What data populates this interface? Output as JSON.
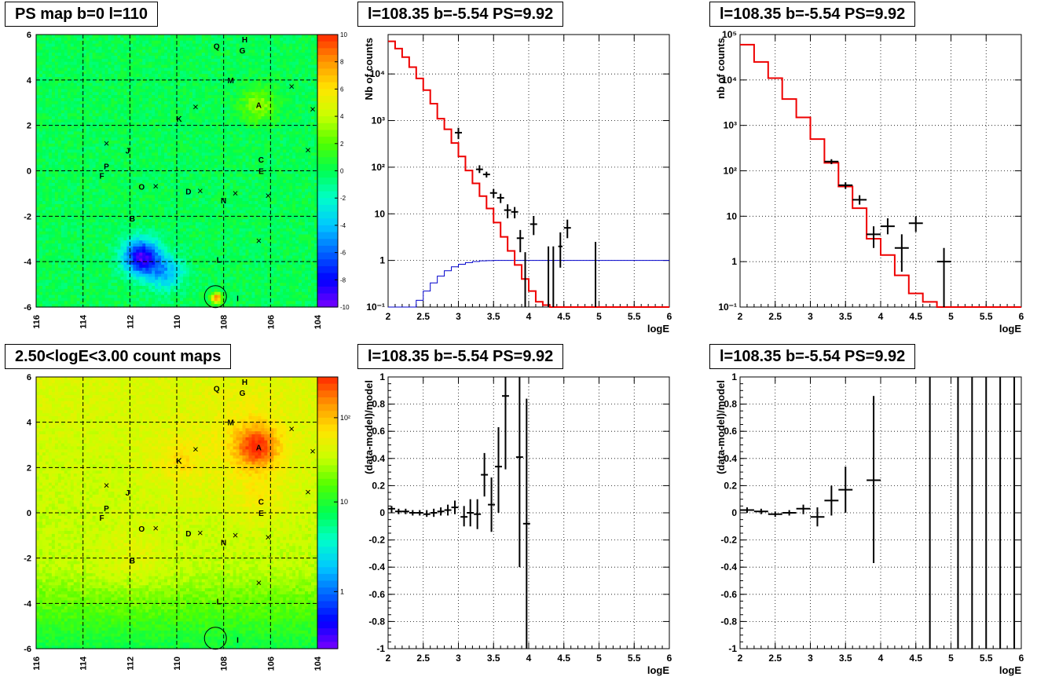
{
  "colors": {
    "red": "#ee0000",
    "blue": "#0000cc",
    "frame": "#000000"
  },
  "titles": {
    "map_ps": "PS map b=0 l=110",
    "map_counts": "2.50<logE<3.00 count maps",
    "spec_1": "l=108.35 b=-5.54 PS=9.92",
    "spec_2": "l=108.35 b=-5.54 PS=9.92",
    "res_1": "l=108.35 b=-5.54 PS=9.92",
    "res_2": "l=108.35 b=-5.54 PS=9.92"
  },
  "chart_data": [
    {
      "type": "heatmap",
      "id": "ps_map",
      "title": "PS map b=0 l=110",
      "x_ticks": [
        "116",
        "114",
        "112",
        "110",
        "108",
        "106",
        "104"
      ],
      "y_ticks": [
        "6",
        "4",
        "2",
        "0",
        "-2",
        "-4",
        "-6"
      ],
      "xlim": [
        116,
        104
      ],
      "ylim": [
        -6,
        6
      ],
      "colorbar": {
        "ticks": [
          "10",
          "8",
          "6",
          "4",
          "2",
          "0",
          "-2",
          "-4",
          "-6",
          "-8",
          "-10"
        ],
        "range": [
          -10,
          10
        ]
      },
      "grid": true,
      "sources": [
        {
          "label": "Q",
          "l": 108.3,
          "b": 5.5
        },
        {
          "label": "H",
          "l": 107.1,
          "b": 5.8
        },
        {
          "label": "G",
          "l": 107.2,
          "b": 5.3
        },
        {
          "label": "M",
          "l": 107.7,
          "b": 4.0
        },
        {
          "label": "A",
          "l": 106.5,
          "b": 2.9
        },
        {
          "label": "K",
          "l": 109.9,
          "b": 2.3
        },
        {
          "label": "J",
          "l": 112.1,
          "b": 0.9
        },
        {
          "label": "C",
          "l": 106.4,
          "b": 0.5
        },
        {
          "label": "P",
          "l": 113.0,
          "b": 0.2
        },
        {
          "label": "E",
          "l": 106.4,
          "b": 0.0
        },
        {
          "label": "F",
          "l": 113.2,
          "b": -0.2
        },
        {
          "label": "O",
          "l": 111.5,
          "b": -0.7
        },
        {
          "label": "D",
          "l": 109.5,
          "b": -0.9
        },
        {
          "label": "N",
          "l": 108.0,
          "b": -1.3
        },
        {
          "label": "B",
          "l": 111.9,
          "b": -2.1
        },
        {
          "label": "L",
          "l": 108.2,
          "b": -3.9
        },
        {
          "label": "I",
          "l": 107.4,
          "b": -5.6
        }
      ],
      "crosses": [
        [
          105.1,
          3.7
        ],
        [
          104.2,
          2.7
        ],
        [
          109.2,
          2.8
        ],
        [
          113.0,
          1.2
        ],
        [
          104.4,
          0.9
        ],
        [
          110.9,
          -0.7
        ],
        [
          109.0,
          -0.9
        ],
        [
          107.5,
          -1.0
        ],
        [
          106.1,
          -1.1
        ],
        [
          106.5,
          -3.1
        ]
      ],
      "circle": {
        "l": 108.35,
        "b": -5.54
      },
      "hotspots": [
        {
          "l": 111.5,
          "b": -3.8,
          "v": -9
        },
        {
          "l": 110.5,
          "b": -4.5,
          "v": -4
        },
        {
          "l": 106.5,
          "b": 2.9,
          "v": 3
        },
        {
          "l": 108.3,
          "b": -5.6,
          "v": 9
        }
      ]
    },
    {
      "type": "heatmap",
      "id": "count_map",
      "title": "2.50<logE<3.00 count maps",
      "x_ticks": [
        "116",
        "114",
        "112",
        "110",
        "108",
        "106",
        "104"
      ],
      "y_ticks": [
        "6",
        "4",
        "2",
        "0",
        "-2",
        "-4",
        "-6"
      ],
      "xlim": [
        116,
        104
      ],
      "ylim": [
        -6,
        6
      ],
      "colorbar": {
        "ticks": [
          "10²",
          "10",
          "1"
        ],
        "scale": "log"
      },
      "grid": true,
      "sources": [
        {
          "label": "Q",
          "l": 108.3,
          "b": 5.5
        },
        {
          "label": "H",
          "l": 107.1,
          "b": 5.8
        },
        {
          "label": "G",
          "l": 107.2,
          "b": 5.3
        },
        {
          "label": "M",
          "l": 107.7,
          "b": 4.0
        },
        {
          "label": "A",
          "l": 106.5,
          "b": 2.9
        },
        {
          "label": "K",
          "l": 109.9,
          "b": 2.3
        },
        {
          "label": "J",
          "l": 112.1,
          "b": 0.9
        },
        {
          "label": "C",
          "l": 106.4,
          "b": 0.5
        },
        {
          "label": "P",
          "l": 113.0,
          "b": 0.2
        },
        {
          "label": "E",
          "l": 106.4,
          "b": 0.0
        },
        {
          "label": "F",
          "l": 113.2,
          "b": -0.2
        },
        {
          "label": "O",
          "l": 111.5,
          "b": -0.7
        },
        {
          "label": "D",
          "l": 109.5,
          "b": -0.9
        },
        {
          "label": "N",
          "l": 108.0,
          "b": -1.3
        },
        {
          "label": "B",
          "l": 111.9,
          "b": -2.1
        },
        {
          "label": "L",
          "l": 108.2,
          "b": -3.9
        },
        {
          "label": "I",
          "l": 107.4,
          "b": -5.6
        }
      ],
      "crosses": [
        [
          105.1,
          3.7
        ],
        [
          104.2,
          2.7
        ],
        [
          109.2,
          2.8
        ],
        [
          113.0,
          1.2
        ],
        [
          104.4,
          0.9
        ],
        [
          110.9,
          -0.7
        ],
        [
          109.0,
          -0.9
        ],
        [
          107.5,
          -1.0
        ],
        [
          106.1,
          -1.1
        ],
        [
          106.5,
          -3.1
        ]
      ],
      "circle": {
        "l": 108.35,
        "b": -5.54
      },
      "hotspots": [
        {
          "l": 106.6,
          "b": 2.9,
          "v": 1.0
        },
        {
          "l": 109.8,
          "b": 2.3,
          "v": 0.55
        },
        {
          "l": 106.5,
          "b": 0.7,
          "v": 0.5
        },
        {
          "l": 111.8,
          "b": -2.0,
          "v": 0.45
        },
        {
          "l": 107.0,
          "b": 4.2,
          "v": 0.4
        }
      ]
    },
    {
      "type": "line",
      "id": "spectrum_1",
      "title": "l=108.35 b=-5.54 PS=9.92",
      "xlabel": "logE",
      "ylabel": "Nb of counts",
      "xlim": [
        2,
        6
      ],
      "ylim": [
        0.1,
        70000
      ],
      "yscale": "log",
      "x_ticks": [
        "2",
        "2.5",
        "3",
        "3.5",
        "4",
        "4.5",
        "5",
        "5.5",
        "6"
      ],
      "y_ticks": [
        "10⁻¹",
        "1",
        "10",
        "10²",
        "10³",
        "10⁴"
      ],
      "model_red": {
        "edges": [
          2,
          2.1,
          2.2,
          2.3,
          2.4,
          2.5,
          2.6,
          2.7,
          2.8,
          2.9,
          3.0,
          3.1,
          3.2,
          3.3,
          3.4,
          3.5,
          3.6,
          3.7,
          3.8,
          3.9,
          4.0,
          4.1,
          4.2,
          4.3,
          4.4,
          6.0
        ],
        "values": [
          50000,
          35000,
          23000,
          14000,
          8000,
          4500,
          2300,
          1100,
          650,
          330,
          170,
          85,
          45,
          24,
          13,
          6.5,
          3.2,
          1.6,
          0.8,
          0.4,
          0.22,
          0.13,
          0.11,
          0.1,
          0.1
        ]
      },
      "acceptance_blue": {
        "edges": [
          2,
          2.4,
          2.5,
          2.6,
          2.7,
          2.8,
          2.9,
          3.0,
          3.1,
          3.2,
          3.3,
          3.4,
          3.5,
          3.7,
          6.0
        ],
        "values": [
          0.1,
          0.14,
          0.22,
          0.33,
          0.46,
          0.6,
          0.73,
          0.83,
          0.9,
          0.95,
          0.98,
          0.99,
          1.0,
          1.0
        ]
      },
      "data_points": [
        {
          "x": 3.0,
          "y": 550,
          "xerr": 0.05,
          "ylo": 400,
          "yhi": 700
        },
        {
          "x": 3.3,
          "y": 90,
          "xerr": 0.05,
          "ylo": 75,
          "yhi": 110
        },
        {
          "x": 3.4,
          "y": 70,
          "xerr": 0.05,
          "ylo": 60,
          "yhi": 80
        },
        {
          "x": 3.5,
          "y": 28,
          "xerr": 0.05,
          "ylo": 22,
          "yhi": 34
        },
        {
          "x": 3.6,
          "y": 22,
          "xerr": 0.05,
          "ylo": 17,
          "yhi": 27
        },
        {
          "x": 3.7,
          "y": 12,
          "xerr": 0.05,
          "ylo": 8,
          "yhi": 16
        },
        {
          "x": 3.8,
          "y": 11,
          "xerr": 0.05,
          "ylo": 8,
          "yhi": 14
        },
        {
          "x": 3.88,
          "y": 3,
          "xerr": 0.05,
          "ylo": 1.5,
          "yhi": 4.5
        },
        {
          "x": 3.95,
          "y": 0.1,
          "xerr": 0.0,
          "ylo": 0.1,
          "yhi": 1.5
        },
        {
          "x": 4.07,
          "y": 6,
          "xerr": 0.05,
          "ylo": 3.5,
          "yhi": 9
        },
        {
          "x": 4.28,
          "y": 0.1,
          "xerr": 0.0,
          "ylo": 0.1,
          "yhi": 2
        },
        {
          "x": 4.35,
          "y": 0.1,
          "xerr": 0.0,
          "ylo": 0.1,
          "yhi": 2
        },
        {
          "x": 4.45,
          "y": 2,
          "xerr": 0.03,
          "ylo": 0.7,
          "yhi": 4
        },
        {
          "x": 4.55,
          "y": 5,
          "xerr": 0.05,
          "ylo": 3,
          "yhi": 7.5
        },
        {
          "x": 4.95,
          "y": 1,
          "xerr": 0.0,
          "ylo": 0.1,
          "yhi": 2.5
        }
      ]
    },
    {
      "type": "line",
      "id": "spectrum_2",
      "title": "l=108.35 b=-5.54 PS=9.92",
      "xlabel": "logE",
      "ylabel": "nb of counts",
      "xlim": [
        2,
        6
      ],
      "ylim": [
        0.1,
        100000
      ],
      "yscale": "log",
      "x_ticks": [
        "2",
        "2.5",
        "3",
        "3.5",
        "4",
        "4.5",
        "5",
        "5.5",
        "6"
      ],
      "y_ticks": [
        "10⁻¹",
        "1",
        "10",
        "10²",
        "10³",
        "10⁴",
        "10⁵"
      ],
      "model_red": {
        "edges": [
          2,
          2.2,
          2.4,
          2.6,
          2.8,
          3.0,
          3.2,
          3.4,
          3.6,
          3.8,
          4.0,
          4.2,
          4.4,
          4.6,
          4.8,
          6.0
        ],
        "values": [
          60000,
          25000,
          11000,
          3800,
          1500,
          500,
          150,
          45,
          15,
          3.2,
          1.4,
          0.5,
          0.2,
          0.13,
          0.1
        ]
      },
      "data_points": [
        {
          "x": 3.3,
          "y": 160,
          "xerr": 0.1,
          "ylo": 140,
          "yhi": 180
        },
        {
          "x": 3.5,
          "y": 48,
          "xerr": 0.1,
          "ylo": 40,
          "yhi": 56
        },
        {
          "x": 3.7,
          "y": 23,
          "xerr": 0.1,
          "ylo": 18,
          "yhi": 29
        },
        {
          "x": 3.9,
          "y": 4,
          "xerr": 0.1,
          "ylo": 2,
          "yhi": 6
        },
        {
          "x": 4.1,
          "y": 6,
          "xerr": 0.1,
          "ylo": 4,
          "yhi": 9
        },
        {
          "x": 4.3,
          "y": 2,
          "xerr": 0.1,
          "ylo": 0.6,
          "yhi": 4
        },
        {
          "x": 4.5,
          "y": 7,
          "xerr": 0.1,
          "ylo": 4.5,
          "yhi": 10
        },
        {
          "x": 4.9,
          "y": 1,
          "xerr": 0.1,
          "ylo": 0.1,
          "yhi": 2
        }
      ]
    },
    {
      "type": "scatter",
      "id": "residuals_1",
      "title": "l=108.35 b=-5.54 PS=9.92",
      "xlabel": "logE",
      "ylabel": "(data-model)/model",
      "xlim": [
        2,
        6
      ],
      "ylim": [
        -1,
        1
      ],
      "x_ticks": [
        "2",
        "2.5",
        "3",
        "3.5",
        "4",
        "4.5",
        "5",
        "5.5",
        "6"
      ],
      "y_ticks": [
        "1",
        "0.8",
        "0.6",
        "0.4",
        "0.2",
        "0",
        "-0.2",
        "-0.4",
        "-0.6",
        "-0.8",
        "-1"
      ],
      "data_points": [
        {
          "x": 2.05,
          "y": 0.03,
          "xerr": 0.05,
          "ylo": 0.0,
          "yhi": 0.05
        },
        {
          "x": 2.15,
          "y": 0.01,
          "xerr": 0.05,
          "ylo": -0.01,
          "yhi": 0.03
        },
        {
          "x": 2.25,
          "y": 0.01,
          "xerr": 0.05,
          "ylo": -0.01,
          "yhi": 0.03
        },
        {
          "x": 2.35,
          "y": 0.0,
          "xerr": 0.05,
          "ylo": -0.02,
          "yhi": 0.02
        },
        {
          "x": 2.45,
          "y": 0.0,
          "xerr": 0.05,
          "ylo": -0.02,
          "yhi": 0.02
        },
        {
          "x": 2.55,
          "y": -0.01,
          "xerr": 0.05,
          "ylo": -0.03,
          "yhi": 0.02
        },
        {
          "x": 2.65,
          "y": 0.0,
          "xerr": 0.05,
          "ylo": -0.03,
          "yhi": 0.03
        },
        {
          "x": 2.75,
          "y": 0.01,
          "xerr": 0.05,
          "ylo": -0.02,
          "yhi": 0.04
        },
        {
          "x": 2.85,
          "y": 0.02,
          "xerr": 0.05,
          "ylo": -0.02,
          "yhi": 0.06
        },
        {
          "x": 2.95,
          "y": 0.04,
          "xerr": 0.05,
          "ylo": -0.01,
          "yhi": 0.09
        },
        {
          "x": 3.08,
          "y": -0.03,
          "xerr": 0.05,
          "ylo": -0.1,
          "yhi": 0.05
        },
        {
          "x": 3.17,
          "y": 0.0,
          "xerr": 0.05,
          "ylo": -0.1,
          "yhi": 0.1
        },
        {
          "x": 3.27,
          "y": -0.01,
          "xerr": 0.05,
          "ylo": -0.12,
          "yhi": 0.1
        },
        {
          "x": 3.37,
          "y": 0.28,
          "xerr": 0.05,
          "ylo": 0.12,
          "yhi": 0.44
        },
        {
          "x": 3.47,
          "y": 0.06,
          "xerr": 0.05,
          "ylo": -0.14,
          "yhi": 0.26
        },
        {
          "x": 3.57,
          "y": 0.34,
          "xerr": 0.05,
          "ylo": 0.0,
          "yhi": 0.63
        },
        {
          "x": 3.67,
          "y": 0.86,
          "xerr": 0.05,
          "ylo": 0.32,
          "yhi": 1.0
        },
        {
          "x": 3.87,
          "y": 0.41,
          "xerr": 0.05,
          "ylo": -0.4,
          "yhi": 1.0
        },
        {
          "x": 3.97,
          "y": -0.08,
          "xerr": 0.05,
          "ylo": -1.0,
          "yhi": 0.84
        }
      ]
    },
    {
      "type": "scatter",
      "id": "residuals_2",
      "title": "l=108.35 b=-5.54 PS=9.92",
      "xlabel": "logE",
      "ylabel": "(data-model)/model",
      "xlim": [
        2,
        6
      ],
      "ylim": [
        -1,
        1
      ],
      "x_ticks": [
        "2",
        "2.5",
        "3",
        "3.5",
        "4",
        "4.5",
        "5",
        "5.5",
        "6"
      ],
      "y_ticks": [
        "1",
        "0.8",
        "0.6",
        "0.4",
        "0.2",
        "0",
        "-0.2",
        "-0.4",
        "-0.6",
        "-0.8",
        "-1"
      ],
      "data_points": [
        {
          "x": 2.1,
          "y": 0.02,
          "xerr": 0.1,
          "ylo": 0.0,
          "yhi": 0.04
        },
        {
          "x": 2.3,
          "y": 0.01,
          "xerr": 0.1,
          "ylo": -0.01,
          "yhi": 0.03
        },
        {
          "x": 2.5,
          "y": -0.01,
          "xerr": 0.1,
          "ylo": -0.03,
          "yhi": 0.01
        },
        {
          "x": 2.7,
          "y": 0.0,
          "xerr": 0.1,
          "ylo": -0.02,
          "yhi": 0.02
        },
        {
          "x": 2.9,
          "y": 0.03,
          "xerr": 0.1,
          "ylo": -0.01,
          "yhi": 0.06
        },
        {
          "x": 3.1,
          "y": -0.03,
          "xerr": 0.1,
          "ylo": -0.1,
          "yhi": 0.04
        },
        {
          "x": 3.3,
          "y": 0.09,
          "xerr": 0.1,
          "ylo": -0.02,
          "yhi": 0.2
        },
        {
          "x": 3.5,
          "y": 0.17,
          "xerr": 0.1,
          "ylo": 0.0,
          "yhi": 0.34
        },
        {
          "x": 3.9,
          "y": 0.24,
          "xerr": 0.1,
          "ylo": -0.37,
          "yhi": 0.86
        },
        {
          "x": 4.7,
          "y": 1.0,
          "xerr": 0.0,
          "ylo": -1.0,
          "yhi": 1.0
        },
        {
          "x": 5.1,
          "y": 1.0,
          "xerr": 0.0,
          "ylo": -1.0,
          "yhi": 1.0
        },
        {
          "x": 5.3,
          "y": 1.0,
          "xerr": 0.0,
          "ylo": -1.0,
          "yhi": 1.0
        },
        {
          "x": 5.5,
          "y": 1.0,
          "xerr": 0.0,
          "ylo": -1.0,
          "yhi": 1.0
        },
        {
          "x": 5.7,
          "y": 1.0,
          "xerr": 0.0,
          "ylo": -1.0,
          "yhi": 1.0
        },
        {
          "x": 5.9,
          "y": 1.0,
          "xerr": 0.0,
          "ylo": -1.0,
          "yhi": 1.0
        }
      ]
    }
  ]
}
